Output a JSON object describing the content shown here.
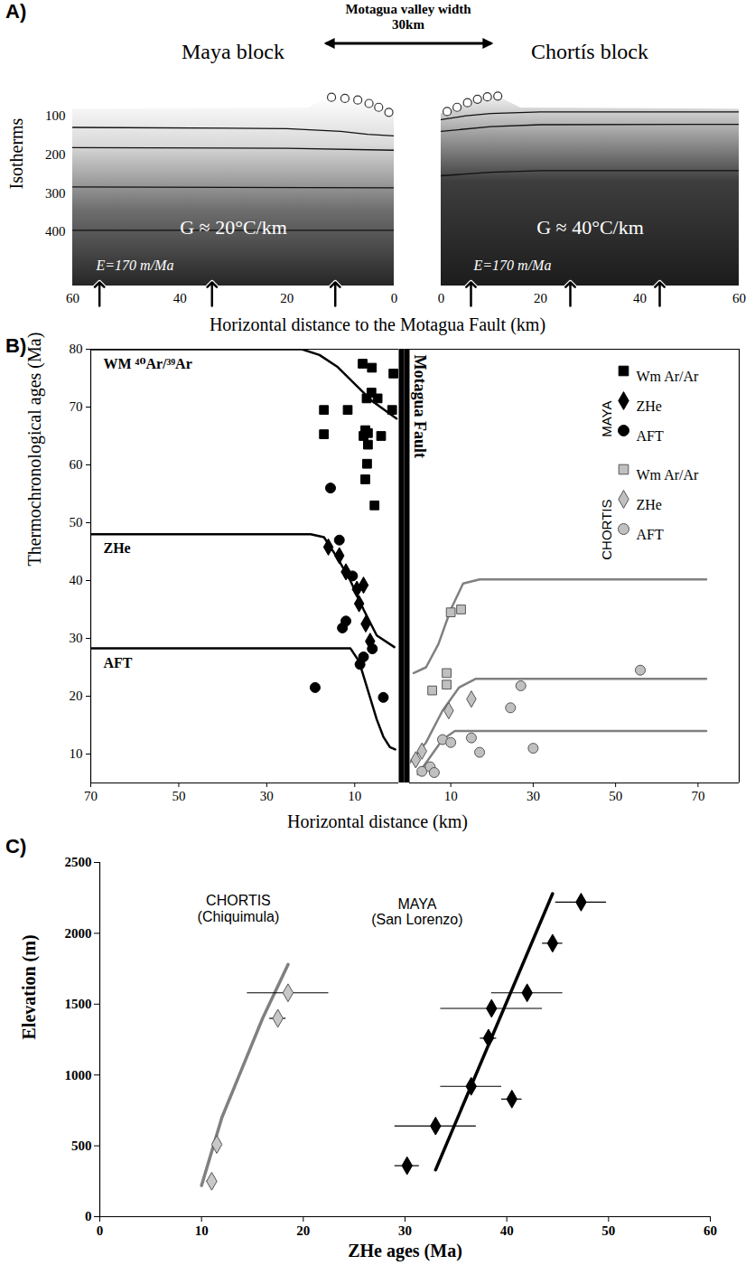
{
  "chart_data": [
    {
      "type": "diagram",
      "panel": "A)",
      "annotation": "Motagua valley width 30km",
      "ylabel": "Isotherms",
      "xlabel": "Horizontal distance to the Motagua Fault (km)",
      "ylim": [
        540,
        40
      ],
      "yticks": [
        100,
        200,
        300,
        400
      ],
      "blocks": [
        {
          "title": "Maya block",
          "xlim": [
            60,
            0
          ],
          "xticks": [
            60,
            40,
            20,
            0
          ],
          "gradient_label": "G ≈ 20°C/km",
          "rate_label": "E=170 m/Ma",
          "arrows_x": [
            55,
            34,
            11
          ],
          "surface": [
            [
              60,
              83
            ],
            [
              16,
              80
            ],
            [
              13.5,
              62
            ],
            [
              11.7,
              52
            ],
            [
              9.2,
              55
            ],
            [
              6.8,
              59
            ],
            [
              4.7,
              68
            ],
            [
              2.9,
              78
            ],
            [
              1,
              91
            ],
            [
              0,
              95
            ]
          ],
          "samples": [
            [
              11.7,
              52
            ],
            [
              9.2,
              55
            ],
            [
              6.8,
              59
            ],
            [
              4.7,
              68
            ],
            [
              2.9,
              78
            ],
            [
              1,
              91
            ]
          ],
          "isotherms": [
            [
              [
                60,
                130
              ],
              [
                20,
                133
              ],
              [
                10,
                140
              ],
              [
                5,
                148
              ],
              [
                0,
                152
              ]
            ],
            [
              [
                60,
                182
              ],
              [
                20,
                184
              ],
              [
                0,
                189
              ]
            ],
            [
              [
                60,
                284
              ],
              [
                0,
                286
              ]
            ],
            [
              [
                60,
                396
              ],
              [
                0,
                396
              ]
            ]
          ]
        },
        {
          "title": "Chortís block",
          "xlim": [
            0,
            60
          ],
          "xticks": [
            0,
            20,
            40,
            60
          ],
          "gradient_label": "G ≈ 40°C/km",
          "rate_label": "E=170 m/Ma",
          "arrows_x": [
            6,
            26,
            44
          ],
          "surface": [
            [
              0,
              95
            ],
            [
              1.2,
              89
            ],
            [
              3.2,
              78
            ],
            [
              5.3,
              66
            ],
            [
              7.3,
              57
            ],
            [
              9.3,
              51
            ],
            [
              11.4,
              49
            ],
            [
              13,
              60
            ],
            [
              16,
              80
            ],
            [
              60,
              83
            ]
          ],
          "samples": [
            [
              1.2,
              89
            ],
            [
              3.2,
              78
            ],
            [
              5.3,
              66
            ],
            [
              7.3,
              57
            ],
            [
              9.3,
              51
            ],
            [
              11.4,
              49
            ]
          ],
          "isotherms": [
            [
              [
                0,
                110
              ],
              [
                5,
                100
              ],
              [
                10,
                94
              ],
              [
                20,
                90
              ],
              [
                60,
                90
              ]
            ],
            [
              [
                0,
                140
              ],
              [
                10,
                128
              ],
              [
                20,
                123
              ],
              [
                60,
                122
              ]
            ],
            [
              [
                0,
                255
              ],
              [
                10,
                246
              ],
              [
                20,
                242
              ],
              [
                60,
                242
              ]
            ]
          ]
        }
      ]
    },
    {
      "type": "scatter",
      "panel": "B)",
      "ylabel": "Thermochronological ages (Ma)",
      "xlabel": "Horizontal distance (km)",
      "ylim": [
        5,
        80
      ],
      "yticks": [
        10,
        20,
        30,
        40,
        50,
        60,
        70,
        80
      ],
      "divider": "Motagua Fault",
      "legend": "top-right",
      "sides": [
        {
          "group": "MAYA",
          "xlim": [
            70,
            0
          ],
          "xticks": [
            70,
            50,
            30,
            10
          ],
          "series": [
            {
              "name": "Wm Ar/Ar",
              "marker": "square",
              "color": "#000000",
              "points": [
                [
                  17,
                  69.5
                ],
                [
                  17,
                  65.3
                ],
                [
                  11.6,
                  69.5
                ],
                [
                  8.2,
                  77.5
                ],
                [
                  6.1,
                  76.8
                ],
                [
                  7.3,
                  71.5
                ],
                [
                  6.2,
                  72.5
                ],
                [
                  4.8,
                  71.5
                ],
                [
                  1.5,
                  69.5
                ],
                [
                  1.2,
                  75.8
                ],
                [
                  7.6,
                  66
                ],
                [
                  7,
                  65.5
                ],
                [
                  8,
                  65
                ],
                [
                  7,
                  63.5
                ],
                [
                  4,
                  65
                ],
                [
                  7.2,
                  60.2
                ],
                [
                  7.6,
                  57.5
                ],
                [
                  5.5,
                  53
                ]
              ]
            },
            {
              "name": "ZHe",
              "marker": "diamond",
              "color": "#000000",
              "points": [
                [
                  16,
                  45.8
                ],
                [
                  13.5,
                  44.3
                ],
                [
                  12,
                  41.5
                ],
                [
                  9.5,
                  38.5
                ],
                [
                  8,
                  39.2
                ],
                [
                  9,
                  36
                ],
                [
                  7.5,
                  32.5
                ],
                [
                  6.5,
                  29.5
                ]
              ]
            },
            {
              "name": "AFT",
              "marker": "circle",
              "color": "#000000",
              "points": [
                [
                  15.5,
                  56
                ],
                [
                  13.5,
                  47
                ],
                [
                  10.5,
                  40.8
                ],
                [
                  12,
                  33
                ],
                [
                  12.8,
                  31.8
                ],
                [
                  19,
                  21.5
                ],
                [
                  8,
                  26.8
                ],
                [
                  8.8,
                  25.5
                ],
                [
                  6,
                  28.2
                ],
                [
                  3.5,
                  19.8
                ]
              ]
            }
          ],
          "curves": [
            {
              "label": "WM ⁴⁰Ar/³⁹Ar",
              "color": "#000000",
              "points": [
                [
                  70,
                  80
                ],
                [
                  22,
                  80
                ],
                [
                  18,
                  79
                ],
                [
                  14,
                  77
                ],
                [
                  10,
                  74
                ],
                [
                  6,
                  71
                ],
                [
                  0.5,
                  68
                ]
              ]
            },
            {
              "label": "ZHe",
              "color": "#000000",
              "points": [
                [
                  70,
                  48
                ],
                [
                  20,
                  48
                ],
                [
                  17,
                  47.5
                ],
                [
                  14,
                  44
                ],
                [
                  11,
                  40
                ],
                [
                  8,
                  35
                ],
                [
                  5,
                  30.5
                ],
                [
                  1,
                  28.5
                ]
              ]
            },
            {
              "label": "AFT",
              "color": "#000000",
              "points": [
                [
                  70,
                  28.3
                ],
                [
                  11,
                  28.3
                ],
                [
                  9,
                  26
                ],
                [
                  7,
                  21
                ],
                [
                  5,
                  16
                ],
                [
                  3.5,
                  13
                ],
                [
                  2,
                  11.2
                ],
                [
                  0.8,
                  10.8
                ]
              ]
            }
          ]
        },
        {
          "group": "CHORTIS",
          "xlim": [
            0,
            80
          ],
          "xticks": [
            10,
            30,
            50,
            70
          ],
          "series": [
            {
              "name": "Wm Ar/Ar",
              "marker": "square",
              "color": "#c0c0c0",
              "points": [
                [
                  5.5,
                  21
                ],
                [
                  9,
                  22
                ],
                [
                  9,
                  24
                ],
                [
                  10,
                  34.5
                ],
                [
                  12.5,
                  35
                ]
              ]
            },
            {
              "name": "ZHe",
              "marker": "diamond",
              "color": "#c0c0c0",
              "points": [
                [
                  1.5,
                  9
                ],
                [
                  3,
                  10.5
                ],
                [
                  9.5,
                  17.5
                ],
                [
                  15,
                  19.5
                ]
              ]
            },
            {
              "name": "AFT",
              "marker": "circle",
              "color": "#c0c0c0",
              "points": [
                [
                  3,
                  7
                ],
                [
                  5,
                  7.8
                ],
                [
                  6,
                  6.8
                ],
                [
                  8,
                  12.5
                ],
                [
                  10,
                  12
                ],
                [
                  15,
                  12.8
                ],
                [
                  17,
                  10.3
                ],
                [
                  24.5,
                  18
                ],
                [
                  27,
                  21.8
                ],
                [
                  30,
                  11
                ],
                [
                  56,
                  24.5
                ]
              ]
            }
          ],
          "curves": [
            {
              "color": "#808080",
              "points": [
                [
                  1,
                  24
                ],
                [
                  4,
                  25
                ],
                [
                  7,
                  29
                ],
                [
                  10,
                  35
                ],
                [
                  13,
                  39.5
                ],
                [
                  17,
                  40.2
                ],
                [
                  72,
                  40.2
                ]
              ]
            },
            {
              "color": "#808080",
              "points": [
                [
                  0,
                  8.5
                ],
                [
                  4,
                  12
                ],
                [
                  8,
                  17.5
                ],
                [
                  12,
                  21.5
                ],
                [
                  16,
                  23
                ],
                [
                  72,
                  23
                ]
              ]
            },
            {
              "color": "#808080",
              "points": [
                [
                  2,
                  6.5
                ],
                [
                  5,
                  9.5
                ],
                [
                  8,
                  12.5
                ],
                [
                  11,
                  14
                ],
                [
                  72,
                  14
                ]
              ]
            }
          ]
        }
      ]
    },
    {
      "type": "scatter",
      "panel": "C)",
      "xlabel": "ZHe ages (Ma)",
      "ylabel": "Elevation (m)",
      "xlim": [
        0,
        60
      ],
      "xticks": [
        0,
        10,
        20,
        30,
        40,
        50,
        60
      ],
      "ylim": [
        0,
        2500
      ],
      "yticks": [
        0,
        500,
        1000,
        1500,
        2000,
        2500
      ],
      "series": [
        {
          "name": "CHORTIS",
          "location": "(Chiquimula)",
          "marker": "diamond",
          "color": "#c8c8c8",
          "x": [
            11,
            11.5,
            17.5,
            18.5
          ],
          "values": [
            250,
            510,
            1400,
            1580
          ],
          "x_errors": [
            0.5,
            0.3,
            0.8,
            4
          ],
          "trend": {
            "color": "#808080",
            "x": [
              10,
              12,
              14,
              16,
              18.5
            ],
            "values": [
              220,
              700,
              1050,
              1400,
              1780
            ]
          }
        },
        {
          "name": "MAYA",
          "location": "(San Lorenzo)",
          "marker": "diamond",
          "color": "#000000",
          "x": [
            30.2,
            33,
            36.5,
            40.5,
            38.2,
            38.5,
            42,
            44.5,
            47.3
          ],
          "values": [
            360,
            640,
            920,
            830,
            1260,
            1470,
            1580,
            1930,
            2220
          ],
          "x_errors": [
            1.2,
            4,
            3,
            1,
            0.8,
            5,
            3.5,
            1,
            2.5
          ],
          "trend": {
            "color": "#000000",
            "x": [
              33,
              44.5
            ],
            "values": [
              330,
              2280
            ]
          }
        }
      ]
    }
  ]
}
